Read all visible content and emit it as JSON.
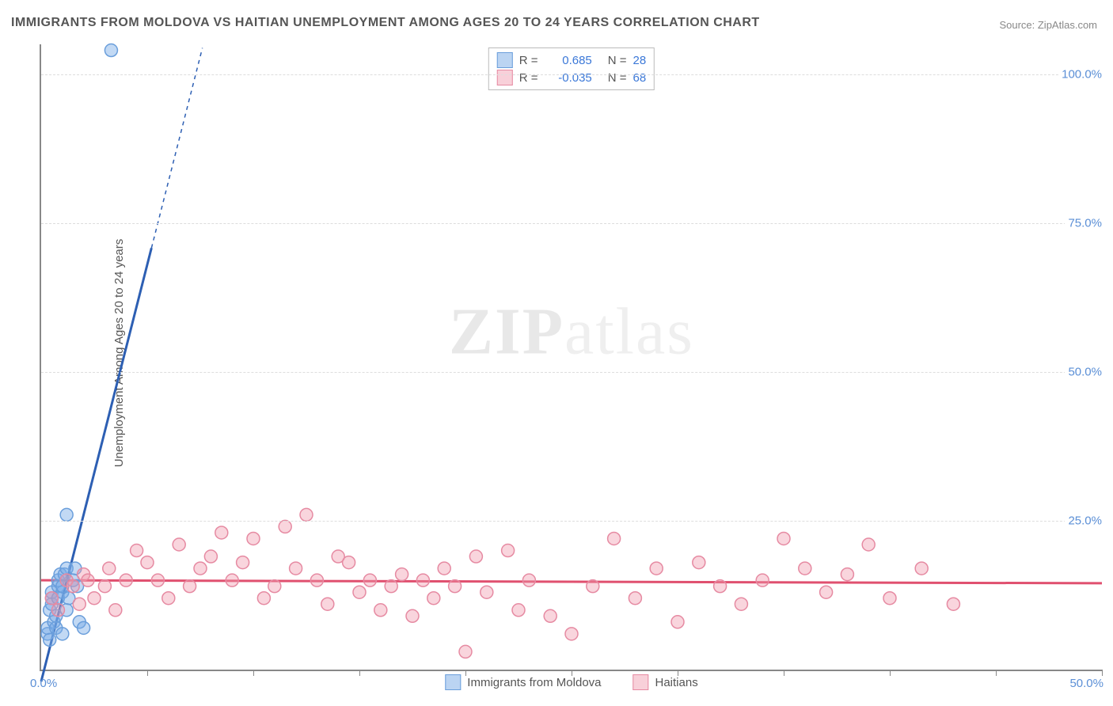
{
  "title": "IMMIGRANTS FROM MOLDOVA VS HAITIAN UNEMPLOYMENT AMONG AGES 20 TO 24 YEARS CORRELATION CHART",
  "source": "Source: ZipAtlas.com",
  "y_axis_label": "Unemployment Among Ages 20 to 24 years",
  "watermark_bold": "ZIP",
  "watermark_light": "atlas",
  "chart": {
    "type": "scatter",
    "background_color": "#ffffff",
    "grid_color": "#dddddd",
    "axis_color": "#888888",
    "xlim": [
      0,
      50
    ],
    "ylim": [
      0,
      105
    ],
    "x_ticks": [
      5,
      10,
      15,
      20,
      25,
      30,
      35,
      40,
      45,
      50
    ],
    "y_ticks": [
      25,
      50,
      75,
      100
    ],
    "y_tick_labels": [
      "25.0%",
      "50.0%",
      "75.0%",
      "100.0%"
    ],
    "x_origin_label": "0.0%",
    "x_max_label": "50.0%",
    "marker_radius": 8,
    "marker_stroke_width": 1.5,
    "series": [
      {
        "name": "Immigrants from Moldova",
        "color_fill": "rgba(120,170,230,0.45)",
        "color_stroke": "#6a9edb",
        "r": 0.685,
        "n": 28,
        "trend": {
          "slope": 14.0,
          "intercept": -2.0,
          "solid_end_x": 5.2,
          "dashed_to_x": 7.6,
          "color": "#2d5fb3",
          "width": 3
        },
        "points": [
          [
            0.3,
            6
          ],
          [
            0.3,
            7
          ],
          [
            0.4,
            10
          ],
          [
            0.4,
            5
          ],
          [
            0.5,
            11
          ],
          [
            0.5,
            12
          ],
          [
            0.5,
            13
          ],
          [
            0.6,
            8
          ],
          [
            0.7,
            7
          ],
          [
            0.7,
            9
          ],
          [
            0.8,
            14
          ],
          [
            0.8,
            12
          ],
          [
            0.8,
            15
          ],
          [
            0.9,
            16
          ],
          [
            1.0,
            13
          ],
          [
            1.0,
            14
          ],
          [
            1.0,
            6
          ],
          [
            1.1,
            16
          ],
          [
            1.2,
            17
          ],
          [
            1.2,
            10
          ],
          [
            1.3,
            12
          ],
          [
            1.5,
            15
          ],
          [
            1.6,
            17
          ],
          [
            1.7,
            14
          ],
          [
            1.8,
            8
          ],
          [
            1.2,
            26
          ],
          [
            2.0,
            7
          ],
          [
            3.3,
            104
          ]
        ]
      },
      {
        "name": "Haitians",
        "color_fill": "rgba(240,150,170,0.4)",
        "color_stroke": "#e68aa2",
        "r": -0.035,
        "n": 68,
        "trend": {
          "slope": -0.01,
          "intercept": 15.0,
          "solid_end_x": 50,
          "dashed_to_x": 50,
          "color": "#e0506f",
          "width": 3
        },
        "points": [
          [
            0.5,
            12
          ],
          [
            0.8,
            10
          ],
          [
            1.2,
            15
          ],
          [
            1.5,
            14
          ],
          [
            1.8,
            11
          ],
          [
            2.0,
            16
          ],
          [
            2.2,
            15
          ],
          [
            2.5,
            12
          ],
          [
            3.0,
            14
          ],
          [
            3.2,
            17
          ],
          [
            3.5,
            10
          ],
          [
            4.0,
            15
          ],
          [
            4.5,
            20
          ],
          [
            5.0,
            18
          ],
          [
            5.5,
            15
          ],
          [
            6.0,
            12
          ],
          [
            6.5,
            21
          ],
          [
            7.0,
            14
          ],
          [
            7.5,
            17
          ],
          [
            8.0,
            19
          ],
          [
            8.5,
            23
          ],
          [
            9.0,
            15
          ],
          [
            9.5,
            18
          ],
          [
            10.0,
            22
          ],
          [
            10.5,
            12
          ],
          [
            11.0,
            14
          ],
          [
            11.5,
            24
          ],
          [
            12.0,
            17
          ],
          [
            12.5,
            26
          ],
          [
            13.0,
            15
          ],
          [
            13.5,
            11
          ],
          [
            14.0,
            19
          ],
          [
            14.5,
            18
          ],
          [
            15.0,
            13
          ],
          [
            15.5,
            15
          ],
          [
            16.0,
            10
          ],
          [
            16.5,
            14
          ],
          [
            17.0,
            16
          ],
          [
            17.5,
            9
          ],
          [
            18.0,
            15
          ],
          [
            18.5,
            12
          ],
          [
            19.0,
            17
          ],
          [
            19.5,
            14
          ],
          [
            20.0,
            3
          ],
          [
            20.5,
            19
          ],
          [
            21.0,
            13
          ],
          [
            22.0,
            20
          ],
          [
            22.5,
            10
          ],
          [
            23.0,
            15
          ],
          [
            24.0,
            9
          ],
          [
            25.0,
            6
          ],
          [
            26.0,
            14
          ],
          [
            27.0,
            22
          ],
          [
            28.0,
            12
          ],
          [
            29.0,
            17
          ],
          [
            30.0,
            8
          ],
          [
            31.0,
            18
          ],
          [
            32.0,
            14
          ],
          [
            33.0,
            11
          ],
          [
            34.0,
            15
          ],
          [
            35.0,
            22
          ],
          [
            36.0,
            17
          ],
          [
            37.0,
            13
          ],
          [
            38.0,
            16
          ],
          [
            39.0,
            21
          ],
          [
            40.0,
            12
          ],
          [
            41.5,
            17
          ],
          [
            43.0,
            11
          ]
        ]
      }
    ]
  },
  "legend_bottom": [
    {
      "label": "Immigrants from Moldova",
      "swatch": "blue"
    },
    {
      "label": "Haitians",
      "swatch": "pink"
    }
  ]
}
